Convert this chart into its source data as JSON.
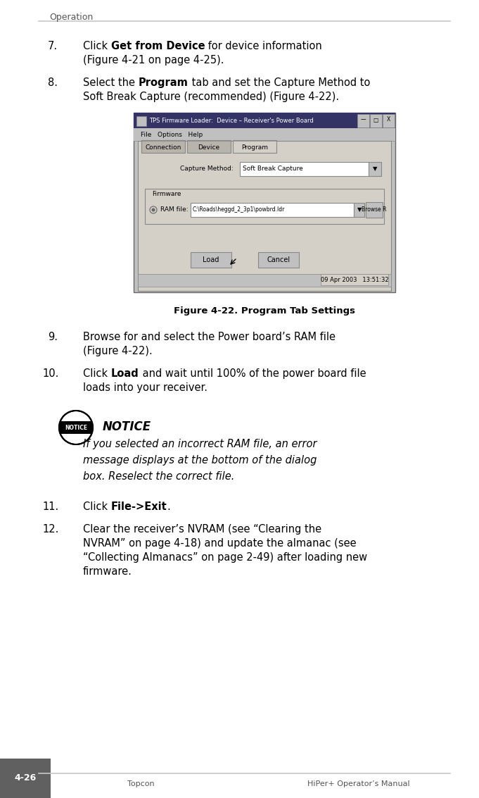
{
  "page_bg": "#ffffff",
  "header_text": "Operation",
  "header_line_color": "#c8c8c8",
  "footer_line_color": "#c8c8c8",
  "footer_left": "Topcon",
  "footer_right": "HiPer+ Operator’s Manual",
  "page_num": "4-26",
  "page_num_bg": "#606060",
  "body_text_color": "#000000",
  "figure_caption": "Figure 4-22. Program Tab Settings",
  "notice_title": "NOTICE",
  "notice_italic_lines": [
    "If you selected an incorrect RAM file, an error",
    "message displays at the bottom of the dialog",
    "box. Reselect the correct file."
  ],
  "dialog_title": "TPS Firmware Loader:  Device – Receiver's Power Board",
  "dialog_tabs": [
    "Connection",
    "Device",
    "Program"
  ],
  "dialog_active_tab": "Program",
  "dialog_capture_value": "Soft Break Capture",
  "dialog_ram_value": "C:\\Roads\\heggd_2_3p1\\powbrd.ldr",
  "dialog_status": "09 Apr 2003   13:51:32"
}
